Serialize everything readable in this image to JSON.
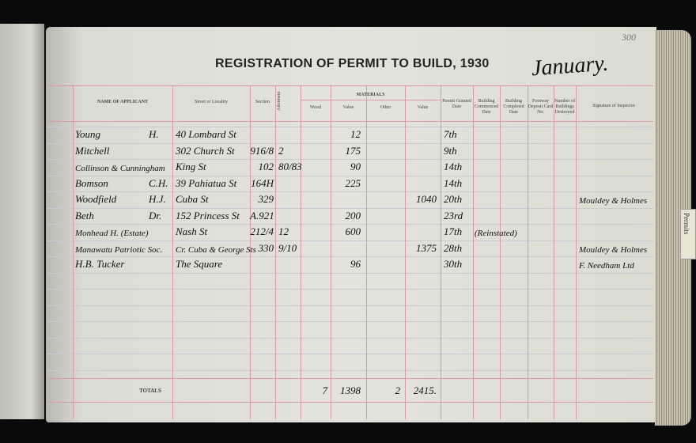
{
  "page_number": "300",
  "title": "REGISTRATION OF PERMIT TO BUILD, 1930",
  "month": "January.",
  "tab_label": "Permits",
  "headers": {
    "name": "NAME OF APPLICANT",
    "street": "Street or Locality",
    "section": "Section",
    "allotment": "Allotment",
    "materials": "MATERIALS",
    "wood": "Wood",
    "value1": "Value",
    "other": "Other",
    "value2": "Value",
    "granted": "Permit Granted Date",
    "commenced": "Building Commenced Date",
    "completed": "Building Completed Date",
    "footway": "Footway Deposit Card No.",
    "destroyed": "Number of Buildings Destroyed",
    "signature": "Signature of Inspector."
  },
  "rows": [
    {
      "surname": "Young",
      "initials": "H.",
      "street": "40 Lombard St",
      "section": "",
      "allotment": "",
      "wood": "",
      "value1": "12",
      "other": "",
      "value2": "",
      "granted": "7th",
      "commenced": "",
      "signature": ""
    },
    {
      "surname": "Mitchell",
      "initials": "",
      "street": "302 Church St",
      "section": "916/8",
      "allotment": "2",
      "wood": "",
      "value1": "175",
      "other": "",
      "value2": "",
      "granted": "9th",
      "commenced": "",
      "signature": ""
    },
    {
      "surname": "Collinson & Cunningham",
      "initials": "",
      "street": "King St",
      "section": "102",
      "allotment": "80/83",
      "wood": "",
      "value1": "90",
      "other": "",
      "value2": "",
      "granted": "14th",
      "commenced": "",
      "signature": ""
    },
    {
      "surname": "Bomson",
      "initials": "C.H.",
      "street": "39 Pahiatua St",
      "section": "164H",
      "allotment": "",
      "wood": "",
      "value1": "225",
      "other": "",
      "value2": "",
      "granted": "14th",
      "commenced": "",
      "signature": ""
    },
    {
      "surname": "Woodfield",
      "initials": "H.J.",
      "street": "Cuba St",
      "section": "329",
      "allotment": "",
      "wood": "",
      "value1": "",
      "other": "",
      "value2": "1040",
      "granted": "20th",
      "commenced": "",
      "signature": "Mouldey & Holmes"
    },
    {
      "surname": "Beth",
      "initials": "Dr.",
      "street": "152 Princess St",
      "section": "A.921",
      "allotment": "",
      "wood": "",
      "value1": "200",
      "other": "",
      "value2": "",
      "granted": "23rd",
      "commenced": "",
      "signature": ""
    },
    {
      "surname": "Monhead H. (Estate)",
      "initials": "",
      "street": "Nash St",
      "section": "212/4",
      "allotment": "12",
      "wood": "",
      "value1": "600",
      "other": "",
      "value2": "",
      "granted": "17th",
      "commenced": "(Reinstated)",
      "signature": ""
    },
    {
      "surname": "Manawatu Patriotic Soc.",
      "initials": "",
      "street": "Cr. Cuba & George Sts",
      "section": "330",
      "allotment": "9/10",
      "wood": "",
      "value1": "",
      "other": "",
      "value2": "1375",
      "granted": "28th",
      "commenced": "",
      "signature": "Mouldey & Holmes"
    },
    {
      "surname": "H.B. Tucker",
      "initials": "",
      "street": "The Square",
      "section": "",
      "allotment": "",
      "wood": "",
      "value1": "96",
      "other": "",
      "value2": "",
      "granted": "30th",
      "commenced": "",
      "signature": "F. Needham Ltd"
    }
  ],
  "totals": {
    "label": "TOTALS",
    "wood": "7",
    "value1": "1398",
    "other": "2",
    "value2": "2415."
  }
}
